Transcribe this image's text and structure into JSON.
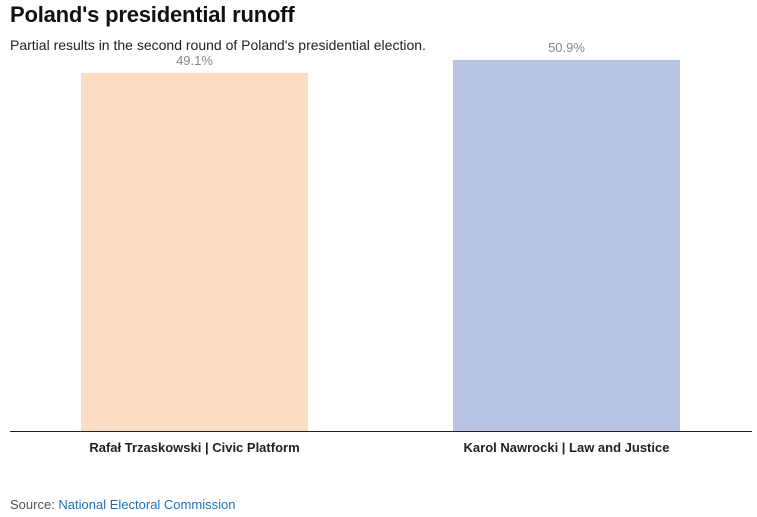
{
  "chart_data": {
    "type": "bar",
    "title": "Poland's presidential runoff",
    "subtitle": "Partial results in the second round of Poland's presidential election.",
    "categories": [
      "Rafał Trzaskowski | Civic Platform",
      "Karol Nawrocki | Law and Justice"
    ],
    "values": [
      49.1,
      50.9
    ],
    "value_labels": [
      "49.1%",
      "50.9%"
    ],
    "colors": [
      "#fbdec2",
      "#b8c4e2"
    ],
    "ylim": [
      0,
      55
    ],
    "grid": false,
    "xlabel": "",
    "ylabel": ""
  },
  "source": {
    "prefix": "Source: ",
    "link_text": "National Electoral Commission"
  },
  "colors": {
    "axis": "#222222",
    "link": "#1a73b8"
  }
}
